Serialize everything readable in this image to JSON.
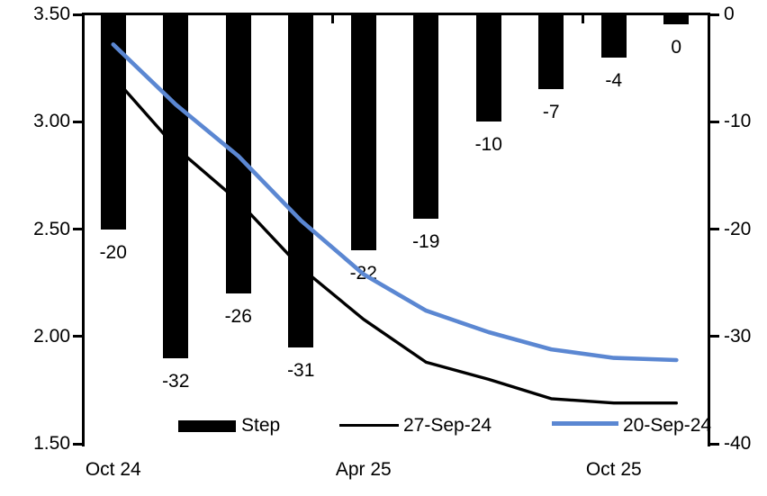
{
  "chart_data": {
    "type": "combo-bar-line",
    "title": "",
    "category_count": 10,
    "x_tick_labels": [
      {
        "category_index": 0,
        "label": "Oct 24"
      },
      {
        "category_index": 4,
        "label": "Apr 25"
      },
      {
        "category_index": 8,
        "label": "Oct 25"
      }
    ],
    "category_boundary_ticks": [
      4,
      8
    ],
    "left_axis": {
      "min": 1.5,
      "max": 3.5,
      "tick_labels": [
        "3.50",
        "3.00",
        "2.50",
        "2.00",
        "1.50"
      ]
    },
    "right_axis": {
      "min": -40,
      "max": 0,
      "tick_labels": [
        "0",
        "-10",
        "-20",
        "-30",
        "-40"
      ]
    },
    "bars": {
      "name": "Step",
      "axis": "right",
      "color": "#000000",
      "values": [
        -20,
        -32,
        -26,
        -31,
        -22,
        -19,
        -10,
        -7,
        -4,
        0
      ],
      "data_labels": [
        "-20",
        "-32",
        "-26",
        "-31",
        "-22",
        "-19",
        "-10",
        "-7",
        "-4",
        "0"
      ]
    },
    "lines": [
      {
        "name": "27-Sep-24",
        "axis": "left",
        "color": "#000000",
        "width": 3.4,
        "values": [
          3.21,
          2.88,
          2.63,
          2.32,
          2.08,
          1.88,
          1.8,
          1.71,
          1.69,
          1.69
        ]
      },
      {
        "name": "20-Sep-24",
        "axis": "left",
        "color": "#5b87d2",
        "width": 4.6,
        "values": [
          3.36,
          3.08,
          2.84,
          2.54,
          2.29,
          2.12,
          2.02,
          1.94,
          1.9,
          1.89
        ]
      }
    ],
    "legend": [
      {
        "label": "Step",
        "swatch": "bar-black"
      },
      {
        "label": "27-Sep-24",
        "swatch": "line-black"
      },
      {
        "label": "20-Sep-24",
        "swatch": "line-blue"
      }
    ],
    "colors": {
      "accent_blue": "#5b87d2",
      "series_black": "#000000"
    }
  }
}
